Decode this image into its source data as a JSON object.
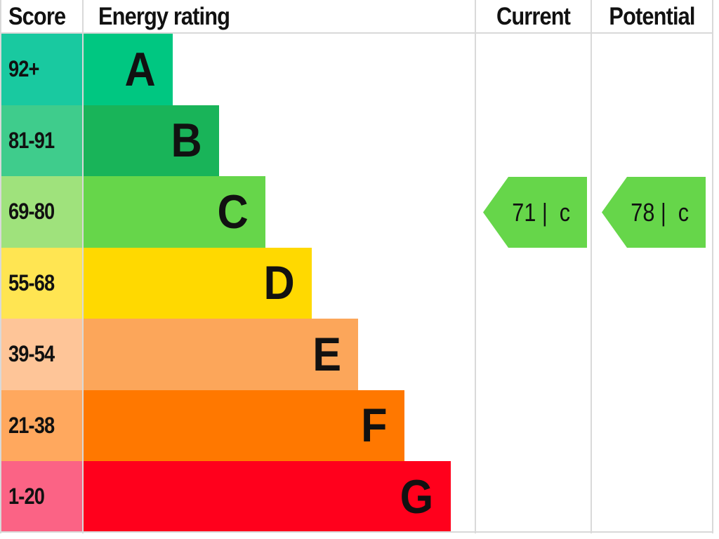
{
  "headers": {
    "score": "Score",
    "rating": "Energy rating",
    "current": "Current",
    "potential": "Potential"
  },
  "chart_data": {
    "type": "bar",
    "title": "",
    "bands": [
      {
        "letter": "A",
        "range": "92+",
        "min": 92,
        "max": null,
        "color": "#00c781",
        "score_color": "#19c9a0"
      },
      {
        "letter": "B",
        "range": "81-91",
        "min": 81,
        "max": 91,
        "color": "#19b459",
        "score_color": "#3fcc8c"
      },
      {
        "letter": "C",
        "range": "69-80",
        "min": 69,
        "max": 80,
        "color": "#66d64a",
        "score_color": "#9fe27c"
      },
      {
        "letter": "D",
        "range": "55-68",
        "min": 55,
        "max": 68,
        "color": "#ffd900",
        "score_color": "#ffe552"
      },
      {
        "letter": "E",
        "range": "39-54",
        "min": 39,
        "max": 54,
        "color": "#fca65a",
        "score_color": "#fec598"
      },
      {
        "letter": "F",
        "range": "21-38",
        "min": 21,
        "max": 38,
        "color": "#ff7800",
        "score_color": "#ffa85e"
      },
      {
        "letter": "G",
        "range": "1-20",
        "min": 1,
        "max": 20,
        "color": "#ff001c",
        "score_color": "#fb6385"
      }
    ],
    "current": {
      "score": 71,
      "band": "C",
      "label": "71 |  c",
      "color": "#66d64a"
    },
    "potential": {
      "score": 78,
      "band": "C",
      "label": "78 |  c",
      "color": "#66d64a"
    }
  }
}
